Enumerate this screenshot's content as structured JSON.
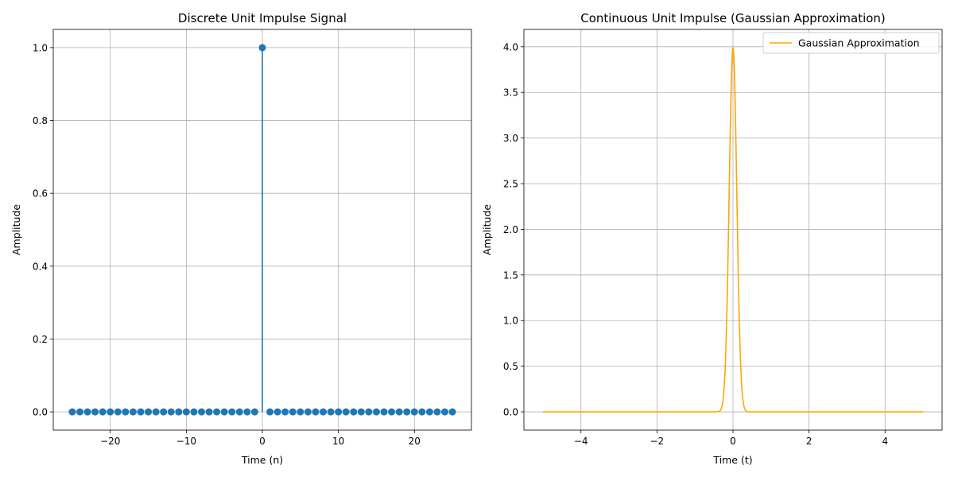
{
  "chart_data": [
    {
      "type": "stem",
      "title": "Discrete Unit Impulse Signal",
      "xlabel": "Time (n)",
      "ylabel": "Amplitude",
      "xlim": [
        -27.5,
        27.5
      ],
      "ylim": [
        -0.05,
        1.05
      ],
      "xticks": [
        -20,
        -10,
        0,
        10,
        20
      ],
      "xtick_labels": [
        "−20",
        "−10",
        "0",
        "10",
        "20"
      ],
      "yticks": [
        0.0,
        0.2,
        0.4,
        0.6,
        0.8,
        1.0
      ],
      "ytick_labels": [
        "0.0",
        "0.2",
        "0.4",
        "0.6",
        "0.8",
        "1.0"
      ],
      "grid": true,
      "color": "#1f77b4",
      "n_range": [
        -25,
        25
      ],
      "impulse_at": 0,
      "impulse_value": 1.0,
      "baseline_value": 0.0
    },
    {
      "type": "line",
      "title": "Continuous Unit Impulse (Gaussian Approximation)",
      "xlabel": "Time (t)",
      "ylabel": "Amplitude",
      "xlim": [
        -5.5,
        5.5
      ],
      "ylim": [
        -0.2,
        4.19
      ],
      "xticks": [
        -4,
        -2,
        0,
        2,
        4
      ],
      "xtick_labels": [
        "−4",
        "−2",
        "0",
        "2",
        "4"
      ],
      "yticks": [
        0.0,
        0.5,
        1.0,
        1.5,
        2.0,
        2.5,
        3.0,
        3.5,
        4.0
      ],
      "ytick_labels": [
        "0.0",
        "0.5",
        "1.0",
        "1.5",
        "2.0",
        "2.5",
        "3.0",
        "3.5",
        "4.0"
      ],
      "grid": true,
      "legend": "top-right",
      "series": [
        {
          "name": "Gaussian Approximation",
          "color": "#ffa500",
          "x_range": [
            -5,
            5
          ],
          "gaussian_sigma": 0.1
        }
      ]
    }
  ]
}
